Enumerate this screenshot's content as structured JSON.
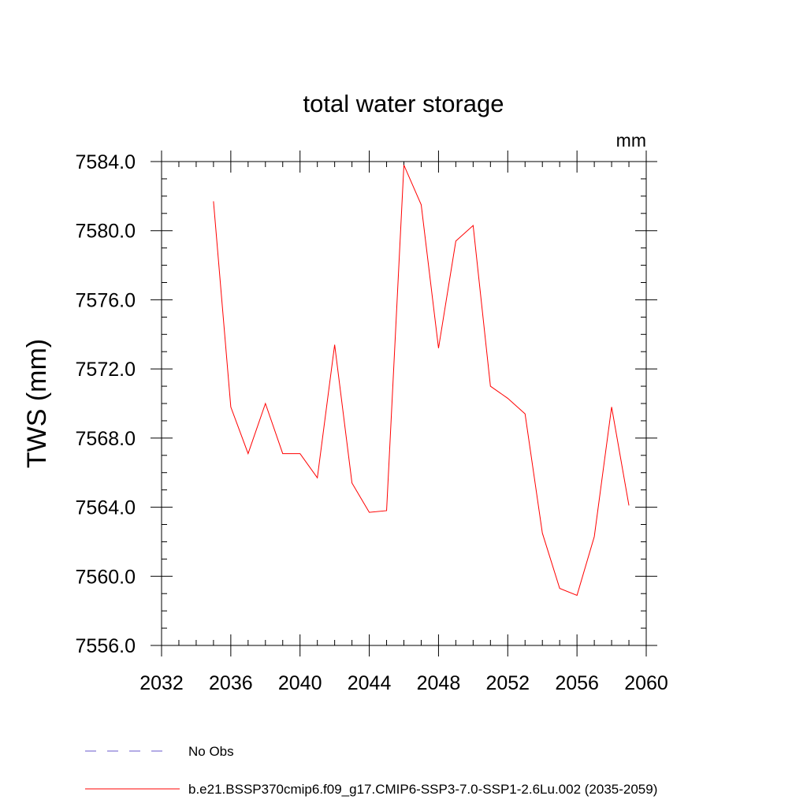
{
  "chart_data": {
    "type": "line",
    "title": "total water storage",
    "units_label": "mm",
    "ylabel": "TWS  (mm)",
    "xlabel": "",
    "xlim": [
      2032,
      2060
    ],
    "ylim": [
      7556.0,
      7584.0
    ],
    "x_ticks": [
      "2032",
      "2036",
      "2040",
      "2044",
      "2048",
      "2052",
      "2056",
      "2060"
    ],
    "y_ticks": [
      "7556.0",
      "7560.0",
      "7564.0",
      "7568.0",
      "7572.0",
      "7576.0",
      "7580.0",
      "7584.0"
    ],
    "x_tick_values": [
      2032,
      2036,
      2040,
      2044,
      2048,
      2052,
      2056,
      2060
    ],
    "y_tick_values": [
      7556,
      7560,
      7564,
      7568,
      7572,
      7576,
      7580,
      7584
    ],
    "x_minor_step": 1,
    "y_minor_step": 1,
    "grid": false,
    "legend_position": "bottom-left",
    "series": [
      {
        "name": "b.e21.BSSP370cmip6.f09_g17.CMIP6-SSP3-7.0-SSP1-2.6Lu.002 (2035-2059)",
        "color": "#ff0000",
        "dash": "solid",
        "x": [
          2035,
          2036,
          2037,
          2038,
          2039,
          2040,
          2041,
          2042,
          2043,
          2044,
          2045,
          2046,
          2047,
          2048,
          2049,
          2050,
          2051,
          2052,
          2053,
          2054,
          2055,
          2056,
          2057,
          2058,
          2059
        ],
        "y": [
          7581.7,
          7569.8,
          7567.1,
          7570.0,
          7567.1,
          7567.1,
          7565.7,
          7573.4,
          7565.4,
          7563.7,
          7563.8,
          7583.8,
          7581.5,
          7573.2,
          7579.4,
          7580.3,
          7571.0,
          7570.3,
          7569.4,
          7562.5,
          7559.3,
          7558.9,
          7562.3,
          7569.8,
          7564.1
        ]
      }
    ],
    "legend": [
      {
        "label": "No Obs",
        "color": "#6a5acd",
        "dash": "dashed"
      },
      {
        "label": "b.e21.BSSP370cmip6.f09_g17.CMIP6-SSP3-7.0-SSP1-2.6Lu.002 (2035-2059)",
        "color": "#ff0000",
        "dash": "solid"
      }
    ]
  }
}
